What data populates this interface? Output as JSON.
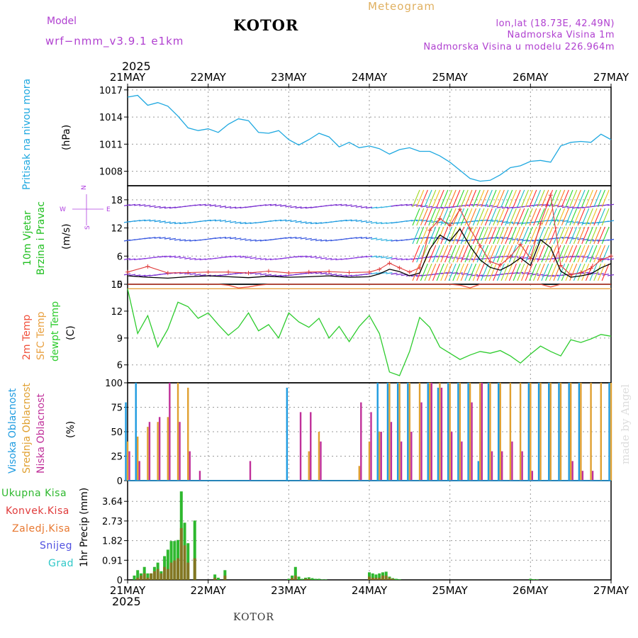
{
  "header": {
    "model_label": "Model",
    "model_name": "wrf−nmm_v3.9.1  e1km",
    "station": "KOTOR",
    "title": "Meteogram",
    "coords": "lon,lat (18.73E, 42.49N)",
    "elevation": "Nadmorska Visina 1m",
    "model_elevation": "Nadmorska Visina u modelu 226.964m",
    "year_top": "2025",
    "year_bottom": "2025",
    "footer_station": "KOTOR",
    "watermark": "made by Angel"
  },
  "colors": {
    "pressure": "#1ea8e0",
    "wind_label": "#1fbf1f",
    "wind_speed_line": "#000000",
    "gust": "#e03a3a",
    "temp2m": "#f0503c",
    "sfc_temp": "#e8a040",
    "dewpoint": "#2ecc2e",
    "cloud_high": "#1e9be0",
    "cloud_mid": "#e0a030",
    "cloud_low": "#c0309a",
    "rain_total": "#2eb82e",
    "rain_conv": "#e03a3a",
    "rain_frozen": "#e87830",
    "snow": "#5050e0",
    "hail": "#30c8c8",
    "compass": "#b040e0",
    "header_purple": "#b040d0",
    "header_gold": "#e0b060"
  },
  "chart_data": [
    {
      "type": "line",
      "panel": "pressure",
      "title": "",
      "ylabel": "Pritisak na nivou mora",
      "units": "(hPa)",
      "x_categories": [
        "21MAY",
        "22MAY",
        "23MAY",
        "24MAY",
        "25MAY",
        "26MAY",
        "27MAY"
      ],
      "ylim": [
        1006.4,
        1017.3
      ],
      "yticks": [
        1008,
        1011,
        1014,
        1017
      ],
      "x_hours": [
        0,
        3,
        6,
        9,
        12,
        15,
        18,
        21,
        24,
        27,
        30,
        33,
        36,
        39,
        42,
        45,
        48,
        51,
        54,
        57,
        60,
        63,
        66,
        69,
        72,
        75,
        78,
        81,
        84,
        87,
        90,
        93,
        96,
        99,
        102,
        105,
        108,
        111,
        114,
        117,
        120,
        123,
        126,
        129,
        132,
        135,
        138,
        141,
        144
      ],
      "series": [
        {
          "values": [
            1016.2,
            1016.4,
            1015.3,
            1015.6,
            1015.2,
            1014.1,
            1012.8,
            1012.5,
            1012.7,
            1012.3,
            1013.2,
            1013.8,
            1013.6,
            1012.3,
            1012.2,
            1012.5,
            1011.5,
            1010.9,
            1011.5,
            1012.2,
            1011.8,
            1010.7,
            1011.2,
            1010.6,
            1010.8,
            1010.5,
            1009.9,
            1010.4,
            1010.6,
            1010.2,
            1010.2,
            1009.7,
            1009.0,
            1008.1,
            1007.2,
            1006.9,
            1007.0,
            1007.6,
            1008.4,
            1008.6,
            1009.1,
            1009.2,
            1009.0,
            1010.8,
            1011.2,
            1011.3,
            1011.2,
            1012.1,
            1011.5
          ]
        }
      ]
    },
    {
      "type": "line",
      "panel": "wind",
      "ylabel": "10m Vjetar",
      "ylabel2": "Brzina i Pravac",
      "units": "(m/s)",
      "ylim": [
        0,
        21
      ],
      "yticks": [
        0,
        6,
        12,
        18
      ],
      "compass": {
        "n": "N",
        "s": "S",
        "e": "E",
        "w": "W"
      },
      "x_hours": [
        0,
        6,
        12,
        18,
        24,
        30,
        36,
        42,
        48,
        54,
        60,
        66,
        72,
        75,
        78,
        81,
        84,
        87,
        90,
        93,
        96,
        99,
        102,
        105,
        108,
        111,
        114,
        117,
        120,
        123,
        126,
        129,
        132,
        135,
        138,
        141,
        144
      ],
      "series": [
        {
          "name": "wind_speed",
          "values": [
            1.8,
            1.5,
            1.3,
            1.6,
            1.8,
            1.6,
            1.4,
            1.7,
            1.5,
            1.6,
            1.8,
            1.5,
            1.6,
            2.2,
            3.2,
            2.7,
            1.8,
            2.4,
            7.5,
            10.5,
            9.2,
            11.8,
            8.1,
            5.2,
            3.6,
            3.0,
            4.1,
            5.6,
            4.0,
            9.5,
            7.8,
            2.8,
            1.5,
            1.8,
            2.2,
            3.5,
            4.4
          ]
        },
        {
          "name": "gust",
          "values": [
            2.6,
            3.8,
            2.4,
            2.5,
            2.6,
            2.6,
            2.4,
            2.8,
            2.4,
            2.6,
            2.7,
            2.5,
            2.6,
            3.2,
            4.5,
            3.5,
            2.6,
            3.5,
            11.5,
            14.0,
            12.5,
            16.0,
            11.8,
            8.2,
            4.8,
            4.1,
            5.9,
            8.5,
            5.5,
            13.0,
            19.0,
            4.0,
            2.0,
            2.5,
            3.4,
            5.2,
            6.0
          ]
        }
      ]
    },
    {
      "type": "line",
      "panel": "temperature",
      "ylabel": "2m Temp",
      "ylabel2": "SFC Temp",
      "ylabel3": "dewpt Temp",
      "units": "(C)",
      "ylim": [
        4,
        15
      ],
      "yticks": [
        6,
        9,
        12,
        15
      ],
      "x_hours": [
        0,
        3,
        6,
        9,
        12,
        15,
        18,
        21,
        24,
        27,
        30,
        33,
        36,
        39,
        42,
        45,
        48,
        51,
        54,
        57,
        60,
        63,
        66,
        69,
        72,
        75,
        78,
        81,
        84,
        87,
        90,
        93,
        96,
        99,
        102,
        105,
        108,
        111,
        114,
        117,
        120,
        123,
        126,
        129,
        132,
        135,
        138,
        141,
        144
      ],
      "series": [
        {
          "name": "2m Temp",
          "values": [
            15.6,
            15.3,
            15.4,
            15.1,
            15.3,
            15.6,
            15.1,
            15.5,
            15.0,
            15.3,
            14.9,
            14.6,
            14.7,
            14.9,
            15.3,
            15.1,
            15.5,
            15.1,
            15.4,
            15.1,
            15.5,
            15.2,
            15.1,
            15.6,
            15.4,
            15.0,
            15.6,
            15.2,
            15.3,
            15.4,
            15.6,
            15.4,
            15.1,
            14.9,
            14.6,
            15.1,
            15.6,
            15.1,
            15.4,
            15.0,
            15.6,
            15.3,
            14.7,
            15.3,
            15.5,
            15.6,
            15.3,
            15.1,
            15.2
          ]
        },
        {
          "name": "SFC Temp",
          "values": [
            14.5,
            14.5,
            14.5,
            14.5,
            14.5,
            14.5,
            14.5,
            14.5,
            14.5,
            14.5,
            14.5,
            14.5,
            14.5,
            14.5,
            14.5,
            14.5,
            14.5,
            14.5,
            14.5,
            14.5,
            14.5,
            14.5,
            14.5,
            14.5,
            14.5,
            14.5,
            14.5,
            14.5,
            14.5,
            14.5,
            14.5,
            14.5,
            14.5,
            14.5,
            14.5,
            14.5,
            14.5,
            14.5,
            14.5,
            14.5,
            14.5,
            14.5,
            14.5,
            14.5,
            14.5,
            14.5,
            14.5,
            14.5,
            14.5
          ]
        },
        {
          "name": "dewpt Temp",
          "values": [
            14.5,
            9.5,
            11.5,
            8.0,
            10.0,
            13.0,
            12.5,
            11.2,
            11.8,
            10.5,
            9.3,
            10.2,
            11.8,
            9.8,
            10.5,
            9.0,
            11.8,
            10.8,
            10.2,
            11.2,
            9.0,
            10.3,
            8.6,
            10.3,
            11.5,
            9.5,
            5.2,
            4.8,
            7.5,
            11.3,
            10.2,
            8.0,
            7.3,
            6.6,
            7.1,
            7.5,
            7.3,
            7.6,
            7.0,
            6.2,
            7.2,
            8.1,
            7.5,
            7.0,
            8.8,
            8.5,
            8.9,
            9.4,
            9.2
          ]
        }
      ]
    },
    {
      "type": "bar",
      "panel": "clouds",
      "ylabel": "Visoka Oblacnost",
      "ylabel2": "Srednja Oblacnost",
      "ylabel3": "Niska Oblacnost",
      "units": "(%)",
      "ylim": [
        0,
        100
      ],
      "yticks": [
        0,
        25,
        50,
        75,
        100
      ],
      "x_hours": [
        0,
        3,
        6,
        9,
        12,
        15,
        18,
        21,
        24,
        27,
        30,
        33,
        36,
        39,
        42,
        45,
        48,
        51,
        54,
        57,
        60,
        63,
        66,
        69,
        72,
        75,
        78,
        81,
        84,
        87,
        90,
        93,
        96,
        99,
        102,
        105,
        108,
        111,
        114,
        117,
        120,
        123,
        126,
        129,
        132,
        135,
        138,
        141,
        144
      ],
      "series": [
        {
          "name": "Visoka Oblacnost",
          "values": [
            80,
            100,
            0,
            0,
            0,
            0,
            0,
            0,
            0,
            0,
            0,
            0,
            0,
            0,
            0,
            0,
            95,
            0,
            0,
            0,
            0,
            0,
            0,
            0,
            0,
            100,
            100,
            100,
            100,
            0,
            100,
            95,
            100,
            100,
            100,
            20,
            100,
            100,
            0,
            0,
            100,
            100,
            100,
            100,
            100,
            100,
            0,
            0,
            100
          ]
        },
        {
          "name": "Srednja Oblacnost",
          "values": [
            40,
            45,
            55,
            60,
            65,
            100,
            95,
            0,
            0,
            0,
            0,
            0,
            0,
            0,
            0,
            0,
            0,
            0,
            30,
            50,
            0,
            0,
            0,
            15,
            40,
            50,
            100,
            100,
            100,
            100,
            100,
            100,
            100,
            100,
            100,
            100,
            100,
            100,
            100,
            100,
            100,
            100,
            100,
            100,
            100,
            100,
            100,
            100,
            100
          ]
        },
        {
          "name": "Niska Oblacnost",
          "values": [
            30,
            20,
            60,
            65,
            100,
            60,
            30,
            10,
            0,
            0,
            0,
            0,
            20,
            0,
            0,
            0,
            0,
            70,
            70,
            40,
            0,
            0,
            0,
            80,
            70,
            50,
            60,
            40,
            50,
            80,
            100,
            95,
            50,
            40,
            80,
            100,
            30,
            30,
            40,
            30,
            10,
            0,
            0,
            0,
            20,
            10,
            10,
            0,
            0
          ]
        }
      ]
    },
    {
      "type": "bar",
      "panel": "precipitation",
      "ylabel": "1hr Precip",
      "units": "(mm)",
      "legend": [
        "Ukupna Kisa",
        "Konvek.Kisa",
        "Zaledj.Kisa",
        "Snijeg",
        "Grad"
      ],
      "ylim": [
        0,
        4.6
      ],
      "yticks": [
        0,
        0.91,
        1.82,
        2.73,
        3.64
      ],
      "x_hours": [
        2,
        3,
        4,
        5,
        6,
        7,
        8,
        9,
        10,
        11,
        12,
        13,
        14,
        15,
        16,
        17,
        18,
        20,
        26,
        27,
        29,
        48,
        49,
        50,
        51,
        52,
        53,
        54,
        55,
        56,
        57,
        58,
        59,
        60,
        61,
        62,
        63,
        64,
        65,
        66,
        67,
        68,
        69,
        70,
        71,
        72,
        73,
        74,
        75,
        76,
        77,
        78,
        79,
        80,
        81,
        120,
        121,
        122
      ],
      "series": [
        {
          "name": "Ukupna Kisa",
          "values": [
            0.2,
            0.45,
            0.3,
            0.6,
            0.3,
            0.3,
            0.6,
            0.8,
            0.4,
            1.1,
            1.4,
            1.8,
            1.8,
            1.85,
            4.1,
            2.65,
            1.7,
            2.75,
            0.25,
            0.1,
            0.45,
            0.05,
            0.2,
            0.6,
            0.15,
            0.05,
            0.1,
            0.12,
            0.08,
            0.05,
            0.05,
            0.02,
            0.02,
            0.0,
            0.0,
            0.0,
            0.0,
            0.0,
            0.0,
            0.0,
            0.0,
            0.0,
            0.0,
            0.0,
            0.0,
            0.35,
            0.3,
            0.25,
            0.3,
            0.35,
            0.38,
            0.15,
            0.08,
            0.05,
            0.03,
            0.05,
            0.03,
            0.02
          ]
        },
        {
          "name": "Konvek.Kisa",
          "values": [
            0.0,
            0.1,
            0.2,
            0.3,
            0.1,
            0.3,
            0.4,
            0.5,
            0.3,
            0.6,
            0.5,
            0.8,
            0.9,
            1.0,
            2.4,
            1.6,
            0.8,
            1.0,
            0.1,
            0.0,
            0.2,
            0.0,
            0.1,
            0.2,
            0.0,
            0.0,
            0.05,
            0.05,
            0.0,
            0.0,
            0.0,
            0.0,
            0.0,
            0.0,
            0.0,
            0.0,
            0.0,
            0.0,
            0.0,
            0.0,
            0.0,
            0.0,
            0.0,
            0.0,
            0.0,
            0.15,
            0.1,
            0.1,
            0.1,
            0.2,
            0.2,
            0.1,
            0.05,
            0.0,
            0.0,
            0.0,
            0.0,
            0.0
          ]
        }
      ]
    }
  ]
}
